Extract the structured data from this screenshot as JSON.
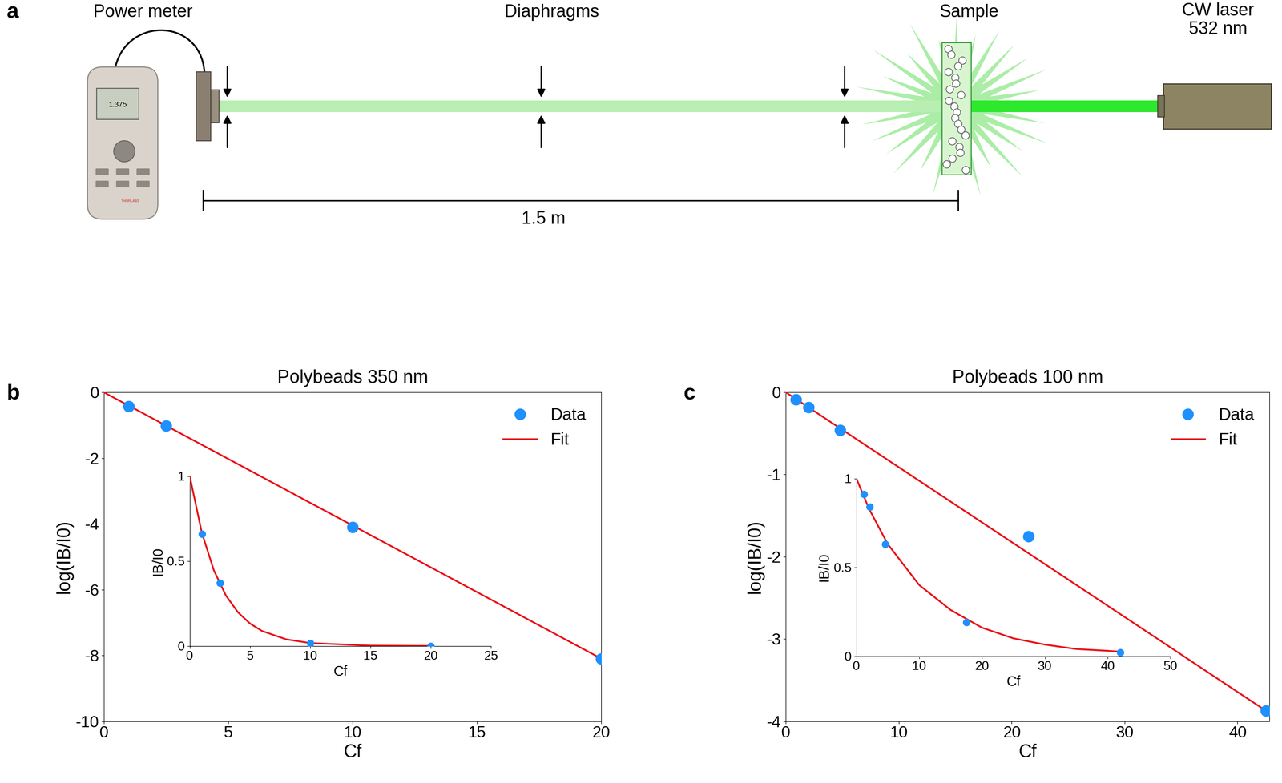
{
  "panel_labels": [
    "a",
    "b",
    "c"
  ],
  "diagram": {
    "power_meter": "Power meter",
    "diaphragms": "Diaphragms",
    "sample": "Sample",
    "laser": "CW laser\n532 nm",
    "distance": "1.5 m",
    "meter_reading": "1.375",
    "brand": "THORLABS"
  },
  "chart_data": [
    {
      "type": "scatter",
      "title": "Polybeads 350 nm",
      "x_label": "Cf",
      "y_label": "log(IB/I0)",
      "xlim": [
        0,
        20
      ],
      "xticks": [
        0,
        5,
        10,
        15,
        20
      ],
      "ylim": [
        -10,
        0
      ],
      "yticks": [
        -10,
        -8,
        -6,
        -4,
        -2,
        0
      ],
      "legend": "upper right",
      "series": [
        {
          "name": "Data",
          "type": "scatter",
          "color": "#1e90ff",
          "marker": "o",
          "x": [
            1,
            2.5,
            10,
            20
          ],
          "values": [
            -0.42,
            -1.02,
            -4.1,
            -8.1
          ]
        },
        {
          "name": "Fit",
          "type": "line",
          "color": "#e8141b",
          "line_style": "solid",
          "x": [
            0,
            20
          ],
          "values": [
            0,
            -8.1
          ]
        }
      ],
      "inset": {
        "type": "scatter",
        "x_label": "Cf",
        "y_label": "IB/I0",
        "xlim": [
          0,
          25
        ],
        "xticks": [
          0,
          5,
          10,
          15,
          20,
          25
        ],
        "ylim": [
          0,
          1
        ],
        "yticks": [
          0,
          0.5,
          1
        ],
        "series": [
          {
            "type": "scatter",
            "color": "#1e90ff",
            "marker": "o",
            "x": [
              1,
              2.5,
              10,
              20
            ],
            "values": [
              0.66,
              0.37,
              0.017,
              0.0003
            ]
          },
          {
            "type": "line",
            "color": "#e8141b",
            "line_style": "solid",
            "x": [
              0,
              1,
              2,
              3,
              4,
              5,
              6,
              8,
              10,
              15,
              20
            ],
            "values": [
              1,
              0.667,
              0.445,
              0.297,
              0.198,
              0.132,
              0.088,
              0.039,
              0.017,
              0.002,
              0.0003
            ]
          }
        ]
      }
    },
    {
      "type": "scatter",
      "title": "Polybeads 100 nm",
      "x_label": "Cf",
      "y_label": "log(IB/I0)",
      "xlim": [
        0,
        42.8
      ],
      "xticks": [
        0,
        10,
        20,
        30,
        40
      ],
      "ylim": [
        -4,
        0
      ],
      "yticks": [
        -4,
        -3,
        -2,
        -1,
        0
      ],
      "legend": "upper right",
      "series": [
        {
          "name": "Data",
          "type": "scatter",
          "color": "#1e90ff",
          "marker": "o",
          "x": [
            0.9,
            2,
            4.8,
            21.5,
            42.5
          ],
          "values": [
            -0.09,
            -0.18,
            -0.46,
            -1.75,
            -3.87
          ]
        },
        {
          "name": "Fit",
          "type": "line",
          "color": "#e8141b",
          "line_style": "solid",
          "x": [
            0,
            42.8
          ],
          "values": [
            0,
            -3.9
          ]
        }
      ],
      "inset": {
        "type": "scatter",
        "x_label": "Cf",
        "y_label": "IB/I0",
        "xlim": [
          0,
          50
        ],
        "xticks": [
          0,
          10,
          20,
          30,
          40,
          50
        ],
        "ylim": [
          0,
          1
        ],
        "yticks": [
          0,
          0.5,
          1
        ],
        "series": [
          {
            "type": "scatter",
            "color": "#1e90ff",
            "marker": "o",
            "x": [
              1.2,
              2.1,
              4.6,
              17.5,
              42
            ],
            "values": [
              0.91,
              0.84,
              0.63,
              0.19,
              0.02
            ]
          },
          {
            "type": "line",
            "color": "#e8141b",
            "line_style": "solid",
            "x": [
              0,
              2,
              5,
              10,
              15,
              20,
              25,
              30,
              35,
              40,
              42
            ],
            "values": [
              1,
              0.83,
              0.63,
              0.4,
              0.26,
              0.16,
              0.1,
              0.065,
              0.04,
              0.03,
              0.025
            ]
          }
        ]
      }
    }
  ]
}
